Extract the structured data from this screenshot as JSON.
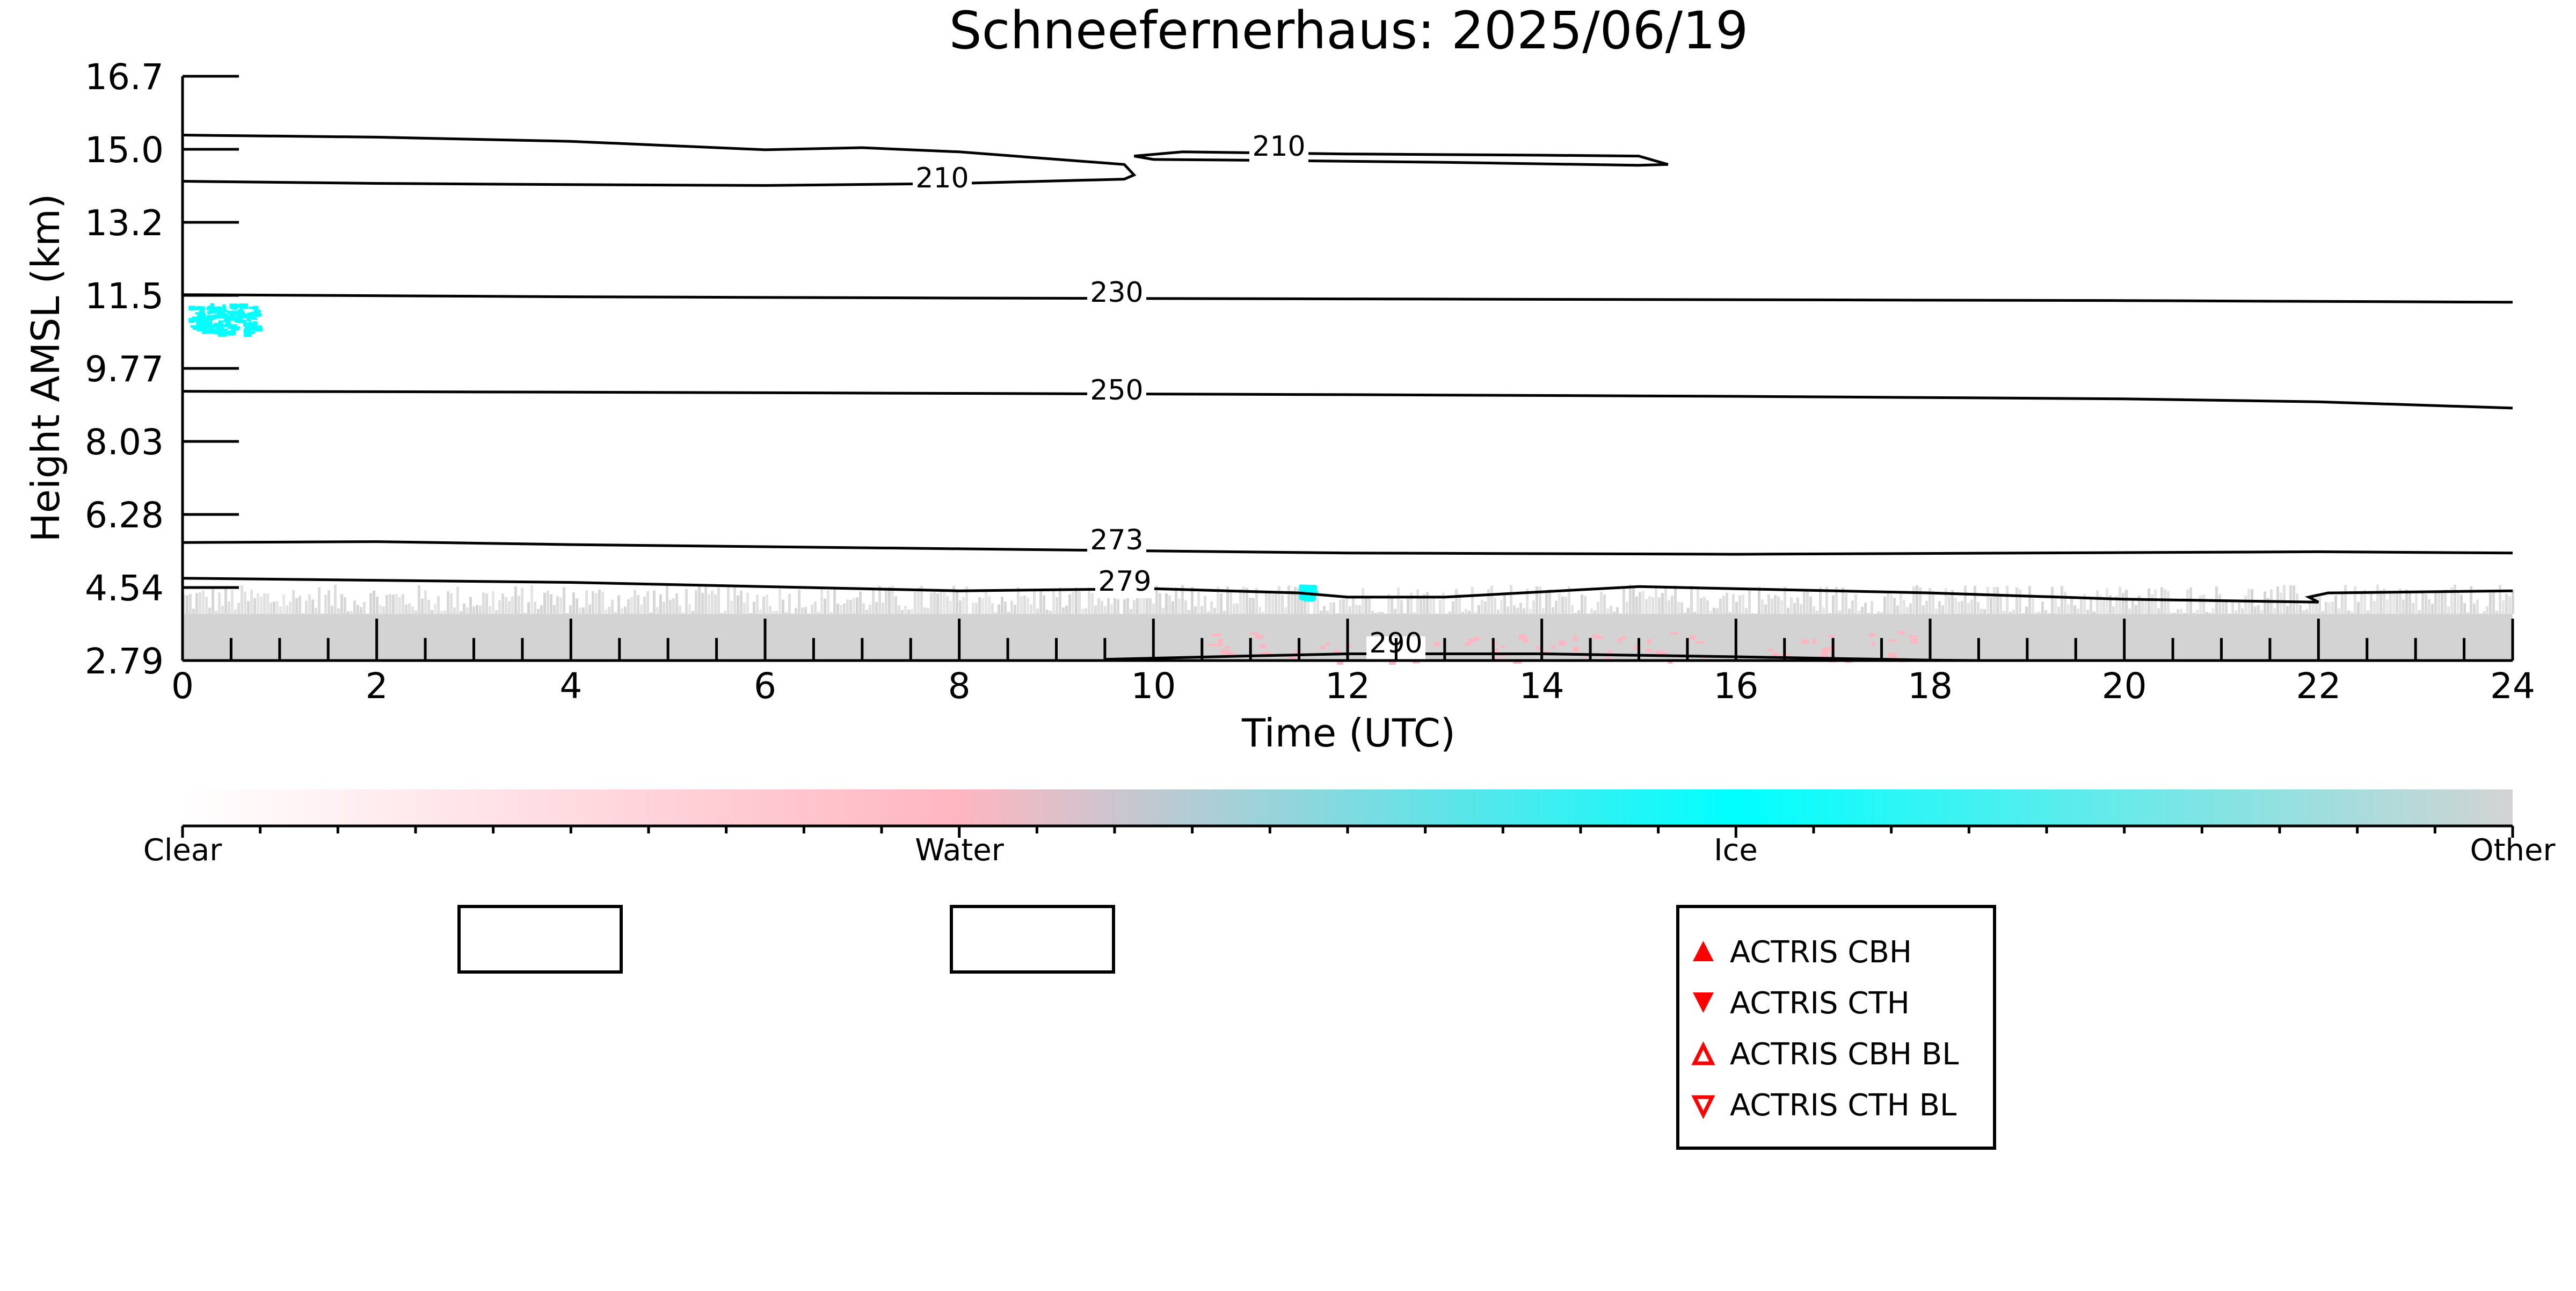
{
  "chart_data": {
    "type": "heatmap",
    "title": "Schneefernerhaus: 2025/06/19",
    "xlabel": "Time (UTC)",
    "ylabel": "Height AMSL (km)",
    "xlim": [
      0,
      24
    ],
    "ylim": [
      2.79,
      16.7
    ],
    "x_ticks": [
      0,
      2,
      4,
      6,
      8,
      10,
      12,
      14,
      16,
      18,
      20,
      22,
      24
    ],
    "y_ticks": [
      "2.79",
      "4.54",
      "6.28",
      "8.03",
      "9.77",
      "11.5",
      "13.2",
      "15.0",
      "16.7"
    ],
    "grid": false,
    "colorbar": {
      "labels": [
        "Clear",
        "Water",
        "Ice",
        "Other"
      ],
      "colors": {
        "Clear": "#ffffff",
        "Water": "#ffb6c1",
        "Ice": "#00ffff",
        "Other": "#d3d3d3"
      }
    },
    "classification_regions": [
      {
        "class": "Other",
        "x": [
          0,
          24
        ],
        "y": [
          2.79,
          4.6
        ]
      },
      {
        "class": "Ice",
        "x": [
          0.05,
          0.75
        ],
        "y": [
          10.6,
          11.3
        ]
      },
      {
        "class": "Ice",
        "x": [
          11.5,
          11.6
        ],
        "y": [
          4.3,
          4.6
        ]
      },
      {
        "class": "Water",
        "x": [
          10.5,
          18.0
        ],
        "y": [
          2.79,
          3.5
        ]
      }
    ],
    "isotherms": [
      {
        "label": "210",
        "x": [
          0,
          2,
          4,
          6,
          7,
          8,
          9.7,
          9.8,
          9.7,
          8,
          6,
          4,
          2,
          0
        ],
        "y": [
          15.3,
          15.25,
          15.15,
          14.95,
          15.0,
          14.9,
          14.6,
          14.35,
          14.25,
          14.15,
          14.1,
          14.12,
          14.15,
          14.2
        ]
      },
      {
        "label": "210",
        "x": [
          9.8,
          10.3,
          12,
          14,
          15.0,
          15.3,
          15.0,
          13,
          11,
          10,
          9.8
        ],
        "y": [
          14.8,
          14.9,
          14.85,
          14.82,
          14.8,
          14.6,
          14.58,
          14.65,
          14.7,
          14.72,
          14.8
        ]
      },
      {
        "label": "230",
        "x": [
          0,
          4,
          8,
          12,
          16,
          20,
          24
        ],
        "y": [
          11.5,
          11.45,
          11.42,
          11.4,
          11.38,
          11.36,
          11.32
        ]
      },
      {
        "label": "250",
        "x": [
          0,
          4,
          8,
          12,
          16,
          20,
          22,
          24
        ],
        "y": [
          9.2,
          9.18,
          9.15,
          9.12,
          9.08,
          9.02,
          8.95,
          8.8
        ]
      },
      {
        "label": "273",
        "x": [
          0,
          2,
          4,
          8,
          10,
          12,
          16,
          20,
          22,
          24
        ],
        "y": [
          5.6,
          5.62,
          5.55,
          5.45,
          5.4,
          5.35,
          5.32,
          5.36,
          5.38,
          5.35
        ]
      },
      {
        "label": "279",
        "x": [
          0,
          4,
          8,
          10,
          11.5,
          12,
          13,
          15,
          18,
          20,
          22,
          21.9,
          22.1,
          24
        ],
        "y": [
          4.75,
          4.65,
          4.45,
          4.5,
          4.4,
          4.3,
          4.3,
          4.55,
          4.4,
          4.25,
          4.18,
          4.3,
          4.4,
          4.45
        ]
      },
      {
        "label": "290",
        "x": [
          9.5,
          11,
          12,
          14,
          16,
          18,
          18.5
        ],
        "y": [
          2.82,
          2.9,
          2.95,
          2.95,
          2.88,
          2.8,
          2.79
        ]
      }
    ],
    "legend": {
      "position": "bottom-right",
      "entries": [
        {
          "label": "ACTRIS CBH",
          "marker": "filled-triangle-up",
          "color": "#ff0000"
        },
        {
          "label": "ACTRIS CTH",
          "marker": "filled-triangle-down",
          "color": "#ff0000"
        },
        {
          "label": "ACTRIS CBH BL",
          "marker": "open-triangle-up",
          "color": "#ff0000"
        },
        {
          "label": "ACTRIS CTH BL",
          "marker": "open-triangle-down",
          "color": "#ff0000"
        }
      ]
    }
  }
}
